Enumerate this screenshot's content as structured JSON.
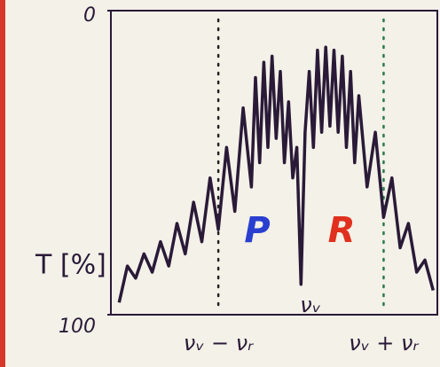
{
  "chart_data": {
    "type": "line",
    "y_label": "T [%]",
    "x": [
      -2.2,
      -2.1,
      -2.0,
      -1.9,
      -1.8,
      -1.7,
      -1.6,
      -1.5,
      -1.4,
      -1.3,
      -1.2,
      -1.1,
      -1.0,
      -0.9,
      -0.8,
      -0.7,
      -0.6,
      -0.55,
      -0.5,
      -0.45,
      -0.4,
      -0.35,
      -0.3,
      -0.25,
      -0.2,
      -0.15,
      -0.1,
      -0.05,
      0,
      0.05,
      0.1,
      0.15,
      0.2,
      0.25,
      0.3,
      0.35,
      0.4,
      0.45,
      0.5,
      0.55,
      0.6,
      0.65,
      0.7,
      0.8,
      0.9,
      1.0,
      1.1,
      1.2,
      1.3,
      1.4,
      1.5,
      1.6
    ],
    "series": [
      {
        "color": "#2a1a38",
        "values": [
          96,
          84,
          88,
          80,
          86,
          76,
          84,
          70,
          80,
          63,
          76,
          55,
          72,
          45,
          66,
          32,
          58,
          22,
          50,
          17,
          45,
          15,
          42,
          20,
          50,
          30,
          55,
          45,
          90,
          40,
          20,
          45,
          13,
          40,
          12,
          38,
          13,
          40,
          15,
          45,
          20,
          50,
          28,
          58,
          40,
          68,
          55,
          78,
          70,
          86,
          82,
          92
        ]
      }
    ],
    "xlim": [
      -2.3,
      1.65
    ],
    "xticks": [
      {
        "value": -1,
        "label": "νᵥ − νᵣ"
      },
      {
        "value": 1,
        "label": "νᵥ + νᵣ"
      }
    ],
    "ylim": [
      100,
      0
    ],
    "yticks": [
      0,
      100
    ],
    "annotations": [
      {
        "text": "P",
        "color": "#2a3fd0"
      },
      {
        "text": "R",
        "color": "#e0301e"
      },
      {
        "text": "νᵥ",
        "color": "#2a1a38"
      }
    ]
  }
}
